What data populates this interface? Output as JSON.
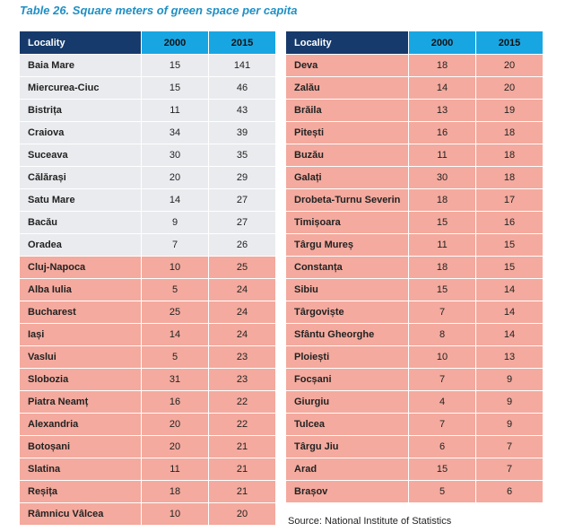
{
  "title": "Table 26. Square meters of green space per capita",
  "headers": {
    "locality": "Locality",
    "y2000": "2000",
    "y2015": "2015"
  },
  "source": "Source: National Institute of Statistics",
  "colors": {
    "header_dark": "#163a6b",
    "header_light": "#18a6e3",
    "row_grey": "#e9ebee",
    "row_pink": "#f4aa9e",
    "title": "#1f8fc4"
  },
  "left_table": [
    {
      "locality": "Baia Mare",
      "y2000": "15",
      "y2015": "141",
      "shade": "grey"
    },
    {
      "locality": "Miercurea-Ciuc",
      "y2000": "15",
      "y2015": "46",
      "shade": "grey"
    },
    {
      "locality": "Bistrița",
      "y2000": "11",
      "y2015": "43",
      "shade": "grey"
    },
    {
      "locality": "Craiova",
      "y2000": "34",
      "y2015": "39",
      "shade": "grey"
    },
    {
      "locality": "Suceava",
      "y2000": "30",
      "y2015": "35",
      "shade": "grey"
    },
    {
      "locality": "Călărași",
      "y2000": "20",
      "y2015": "29",
      "shade": "grey"
    },
    {
      "locality": "Satu Mare",
      "y2000": "14",
      "y2015": "27",
      "shade": "grey"
    },
    {
      "locality": "Bacău",
      "y2000": "9",
      "y2015": "27",
      "shade": "grey"
    },
    {
      "locality": "Oradea",
      "y2000": "7",
      "y2015": "26",
      "shade": "grey"
    },
    {
      "locality": "Cluj-Napoca",
      "y2000": "10",
      "y2015": "25",
      "shade": "pink"
    },
    {
      "locality": "Alba Iulia",
      "y2000": "5",
      "y2015": "24",
      "shade": "pink"
    },
    {
      "locality": "Bucharest",
      "y2000": "25",
      "y2015": "24",
      "shade": "pink"
    },
    {
      "locality": "Iași",
      "y2000": "14",
      "y2015": "24",
      "shade": "pink"
    },
    {
      "locality": "Vaslui",
      "y2000": "5",
      "y2015": "23",
      "shade": "pink"
    },
    {
      "locality": "Slobozia",
      "y2000": "31",
      "y2015": "23",
      "shade": "pink"
    },
    {
      "locality": "Piatra Neamț",
      "y2000": "16",
      "y2015": "22",
      "shade": "pink"
    },
    {
      "locality": "Alexandria",
      "y2000": "20",
      "y2015": "22",
      "shade": "pink"
    },
    {
      "locality": "Botoșani",
      "y2000": "20",
      "y2015": "21",
      "shade": "pink"
    },
    {
      "locality": "Slatina",
      "y2000": "11",
      "y2015": "21",
      "shade": "pink"
    },
    {
      "locality": "Reșița",
      "y2000": "18",
      "y2015": "21",
      "shade": "pink"
    },
    {
      "locality": "Râmnicu Vâlcea",
      "y2000": "10",
      "y2015": "20",
      "shade": "pink"
    }
  ],
  "right_table": [
    {
      "locality": "Deva",
      "y2000": "18",
      "y2015": "20",
      "shade": "pink"
    },
    {
      "locality": "Zalău",
      "y2000": "14",
      "y2015": "20",
      "shade": "pink"
    },
    {
      "locality": "Brăila",
      "y2000": "13",
      "y2015": "19",
      "shade": "pink"
    },
    {
      "locality": "Pitești",
      "y2000": "16",
      "y2015": "18",
      "shade": "pink"
    },
    {
      "locality": "Buzău",
      "y2000": "11",
      "y2015": "18",
      "shade": "pink"
    },
    {
      "locality": "Galați",
      "y2000": "30",
      "y2015": "18",
      "shade": "pink"
    },
    {
      "locality": "Drobeta-Turnu Severin",
      "y2000": "18",
      "y2015": "17",
      "shade": "pink"
    },
    {
      "locality": "Timișoara",
      "y2000": "15",
      "y2015": "16",
      "shade": "pink"
    },
    {
      "locality": "Târgu Mureș",
      "y2000": "11",
      "y2015": "15",
      "shade": "pink"
    },
    {
      "locality": "Constanța",
      "y2000": "18",
      "y2015": "15",
      "shade": "pink"
    },
    {
      "locality": "Sibiu",
      "y2000": "15",
      "y2015": "14",
      "shade": "pink"
    },
    {
      "locality": "Târgoviște",
      "y2000": "7",
      "y2015": "14",
      "shade": "pink"
    },
    {
      "locality": "Sfântu Gheorghe",
      "y2000": "8",
      "y2015": "14",
      "shade": "pink"
    },
    {
      "locality": "Ploiești",
      "y2000": "10",
      "y2015": "13",
      "shade": "pink"
    },
    {
      "locality": "Focșani",
      "y2000": "7",
      "y2015": "9",
      "shade": "pink"
    },
    {
      "locality": "Giurgiu",
      "y2000": "4",
      "y2015": "9",
      "shade": "pink"
    },
    {
      "locality": "Tulcea",
      "y2000": "7",
      "y2015": "9",
      "shade": "pink"
    },
    {
      "locality": "Târgu Jiu",
      "y2000": "6",
      "y2015": "7",
      "shade": "pink"
    },
    {
      "locality": "Arad",
      "y2000": "15",
      "y2015": "7",
      "shade": "pink"
    },
    {
      "locality": "Brașov",
      "y2000": "5",
      "y2015": "6",
      "shade": "pink"
    }
  ]
}
